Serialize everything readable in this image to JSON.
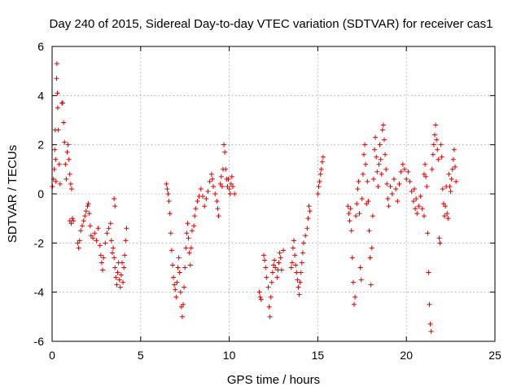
{
  "chart_data": {
    "type": "scatter",
    "title": "Day 240 of 2015, Sidereal Day-to-day VTEC variation (SDTVAR) for receiver cas1",
    "xlabel": "GPS time / hours",
    "ylabel": "SDTVAR / TECUs",
    "xlim": [
      0,
      25
    ],
    "ylim": [
      -6,
      6
    ],
    "xticks": [
      0,
      5,
      10,
      15,
      20,
      25
    ],
    "yticks": [
      -6,
      -4,
      -2,
      0,
      2,
      4,
      6
    ],
    "xtick_labels": [
      "0",
      "5",
      "10",
      "15",
      "20",
      "25"
    ],
    "ytick_labels": [
      "-6",
      "-4",
      "-2",
      "0",
      "2",
      "4",
      "6"
    ],
    "grid": true,
    "marker": "plus",
    "color": "#dd0000",
    "series": [
      {
        "name": "SDTVAR",
        "points": [
          [
            0.02,
            0.3
          ],
          [
            0.08,
            0.6
          ],
          [
            0.12,
            1.0
          ],
          [
            0.15,
            1.8
          ],
          [
            0.18,
            2.6
          ],
          [
            0.2,
            1.4
          ],
          [
            0.22,
            0.5
          ],
          [
            0.25,
            4.7
          ],
          [
            0.27,
            5.3
          ],
          [
            0.3,
            4.1
          ],
          [
            0.32,
            3.5
          ],
          [
            0.35,
            2.6
          ],
          [
            0.4,
            1.2
          ],
          [
            0.45,
            0.4
          ],
          [
            0.55,
            3.7
          ],
          [
            0.6,
            3.7
          ],
          [
            0.65,
            2.9
          ],
          [
            0.7,
            2.1
          ],
          [
            0.75,
            1.2
          ],
          [
            0.8,
            0.6
          ],
          [
            0.85,
            1.7
          ],
          [
            0.9,
            2.0
          ],
          [
            0.95,
            1.4
          ],
          [
            1.0,
            0.8
          ],
          [
            1.05,
            0.4
          ],
          [
            1.1,
            0.2
          ],
          [
            1.0,
            -1.1
          ],
          [
            1.08,
            -1.2
          ],
          [
            1.15,
            -1.0
          ],
          [
            1.2,
            -1.1
          ],
          [
            1.45,
            -2.0
          ],
          [
            1.5,
            -2.2
          ],
          [
            1.55,
            -1.9
          ],
          [
            1.62,
            -1.5
          ],
          [
            1.7,
            -1.3
          ],
          [
            1.78,
            -1.1
          ],
          [
            1.85,
            -0.9
          ],
          [
            1.92,
            -0.7
          ],
          [
            2.0,
            -0.5
          ],
          [
            2.05,
            -0.4
          ],
          [
            2.1,
            -0.8
          ],
          [
            2.15,
            -1.3
          ],
          [
            2.2,
            -1.7
          ],
          [
            2.3,
            -1.8
          ],
          [
            2.4,
            -1.6
          ],
          [
            2.5,
            -1.9
          ],
          [
            2.6,
            -1.4
          ],
          [
            2.7,
            -2.1
          ],
          [
            2.75,
            -2.5
          ],
          [
            2.8,
            -2.8
          ],
          [
            2.85,
            -3.1
          ],
          [
            2.9,
            -2.6
          ],
          [
            3.0,
            -2.0
          ],
          [
            3.1,
            -1.6
          ],
          [
            3.2,
            -1.4
          ],
          [
            3.3,
            -1.2
          ],
          [
            3.35,
            -1.9
          ],
          [
            3.4,
            -2.4
          ],
          [
            3.45,
            -2.2
          ],
          [
            3.5,
            -2.6
          ],
          [
            3.55,
            -3.0
          ],
          [
            3.6,
            -3.4
          ],
          [
            3.5,
            -0.2
          ],
          [
            3.55,
            -0.5
          ],
          [
            3.65,
            -3.7
          ],
          [
            3.7,
            -3.2
          ],
          [
            3.75,
            -2.8
          ],
          [
            3.8,
            -3.5
          ],
          [
            3.85,
            -3.8
          ],
          [
            3.9,
            -3.3
          ],
          [
            3.95,
            -2.8
          ],
          [
            4.0,
            -3.6
          ],
          [
            4.05,
            -3.0
          ],
          [
            4.1,
            -2.5
          ],
          [
            4.15,
            -1.9
          ],
          [
            4.2,
            -1.4
          ],
          [
            6.45,
            0.4
          ],
          [
            6.5,
            0.2
          ],
          [
            6.55,
            0.0
          ],
          [
            6.6,
            -0.3
          ],
          [
            6.65,
            -0.8
          ],
          [
            6.7,
            -1.6
          ],
          [
            6.75,
            -2.3
          ],
          [
            6.8,
            -2.9
          ],
          [
            6.85,
            -3.4
          ],
          [
            6.9,
            -3.7
          ],
          [
            6.95,
            -3.9
          ],
          [
            7.0,
            -4.2
          ],
          [
            7.05,
            -3.6
          ],
          [
            7.1,
            -3.0
          ],
          [
            7.15,
            -2.6
          ],
          [
            7.2,
            -3.2
          ],
          [
            7.25,
            -4.0
          ],
          [
            7.3,
            -4.6
          ],
          [
            7.35,
            -5.0
          ],
          [
            7.4,
            -4.5
          ],
          [
            7.45,
            -3.8
          ],
          [
            7.5,
            -3.0
          ],
          [
            7.55,
            -2.2
          ],
          [
            7.6,
            -1.6
          ],
          [
            7.65,
            -1.2
          ],
          [
            7.7,
            -1.8
          ],
          [
            7.75,
            -2.4
          ],
          [
            7.8,
            -2.9
          ],
          [
            7.85,
            -2.2
          ],
          [
            7.9,
            -1.5
          ],
          [
            8.0,
            -1.3
          ],
          [
            8.05,
            -0.9
          ],
          [
            8.1,
            -0.6
          ],
          [
            8.2,
            -0.3
          ],
          [
            8.3,
            -0.1
          ],
          [
            8.4,
            0.2
          ],
          [
            8.5,
            -0.1
          ],
          [
            8.6,
            -0.5
          ],
          [
            8.7,
            -0.2
          ],
          [
            8.8,
            0.1
          ],
          [
            8.9,
            0.5
          ],
          [
            9.0,
            0.8
          ],
          [
            9.05,
            0.6
          ],
          [
            9.1,
            0.3
          ],
          [
            9.2,
            0.0
          ],
          [
            9.3,
            -0.3
          ],
          [
            9.35,
            -0.6
          ],
          [
            9.4,
            -0.9
          ],
          [
            9.5,
            0.4
          ],
          [
            9.55,
            0.7
          ],
          [
            9.6,
            0.3
          ],
          [
            9.65,
            1.0
          ],
          [
            9.7,
            2.0
          ],
          [
            9.75,
            1.7
          ],
          [
            9.8,
            1.0
          ],
          [
            9.85,
            0.6
          ],
          [
            9.9,
            0.3
          ],
          [
            9.95,
            0.6
          ],
          [
            10.0,
            0.2
          ],
          [
            10.05,
            0.0
          ],
          [
            10.1,
            0.4
          ],
          [
            10.15,
            0.7
          ],
          [
            10.2,
            0.3
          ],
          [
            10.3,
            0.0
          ],
          [
            11.7,
            -4.0
          ],
          [
            11.75,
            -4.2
          ],
          [
            11.8,
            -4.3
          ],
          [
            11.95,
            -2.5
          ],
          [
            12.0,
            -2.7
          ],
          [
            12.05,
            -3.0
          ],
          [
            12.1,
            -3.4
          ],
          [
            12.2,
            -3.8
          ],
          [
            12.25,
            -4.6
          ],
          [
            12.3,
            -5.0
          ],
          [
            12.35,
            -4.2
          ],
          [
            12.4,
            -3.6
          ],
          [
            12.45,
            -3.2
          ],
          [
            12.5,
            -2.9
          ],
          [
            12.55,
            -2.7
          ],
          [
            12.6,
            -3.0
          ],
          [
            12.7,
            -3.4
          ],
          [
            12.75,
            -3.1
          ],
          [
            12.8,
            -2.8
          ],
          [
            12.85,
            -2.4
          ],
          [
            12.9,
            -2.6
          ],
          [
            12.95,
            -3.1
          ],
          [
            13.05,
            -2.3
          ],
          [
            13.5,
            -3.0
          ],
          [
            13.55,
            -2.8
          ],
          [
            13.6,
            -2.2
          ],
          [
            13.65,
            -1.9
          ],
          [
            13.7,
            -2.5
          ],
          [
            13.75,
            -2.9
          ],
          [
            13.8,
            -3.2
          ],
          [
            13.85,
            -3.5
          ],
          [
            13.9,
            -3.8
          ],
          [
            13.95,
            -4.1
          ],
          [
            14.0,
            -3.6
          ],
          [
            14.05,
            -3.2
          ],
          [
            14.1,
            -2.8
          ],
          [
            14.15,
            -2.4
          ],
          [
            14.2,
            -2.0
          ],
          [
            14.3,
            -1.7
          ],
          [
            14.4,
            -1.4
          ],
          [
            14.45,
            -1.0
          ],
          [
            14.5,
            -0.5
          ],
          [
            14.55,
            -0.7
          ],
          [
            15.0,
            0.0
          ],
          [
            15.05,
            0.3
          ],
          [
            15.1,
            0.5
          ],
          [
            15.15,
            0.8
          ],
          [
            15.2,
            1.0
          ],
          [
            15.25,
            1.3
          ],
          [
            15.3,
            1.5
          ],
          [
            16.7,
            -0.5
          ],
          [
            16.75,
            -0.8
          ],
          [
            16.8,
            -1.1
          ],
          [
            16.85,
            -0.6
          ],
          [
            16.9,
            -1.5
          ],
          [
            16.95,
            -2.6
          ],
          [
            17.0,
            -3.6
          ],
          [
            17.05,
            -4.5
          ],
          [
            17.1,
            -4.2
          ],
          [
            17.15,
            -0.9
          ],
          [
            17.2,
            -0.4
          ],
          [
            17.25,
            0.2
          ],
          [
            17.3,
            0.5
          ],
          [
            17.35,
            -0.8
          ],
          [
            17.4,
            -3.0
          ],
          [
            17.45,
            -3.5
          ],
          [
            17.5,
            -0.2
          ],
          [
            17.55,
            0.8
          ],
          [
            17.6,
            1.6
          ],
          [
            17.65,
            2.0
          ],
          [
            17.7,
            1.2
          ],
          [
            17.75,
            -0.4
          ],
          [
            17.8,
            0.5
          ],
          [
            17.85,
            -0.3
          ],
          [
            17.9,
            -1.5
          ],
          [
            17.95,
            -2.6
          ],
          [
            18.0,
            -3.7
          ],
          [
            18.05,
            -2.2
          ],
          [
            18.1,
            -0.9
          ],
          [
            18.15,
            0.6
          ],
          [
            18.2,
            1.8
          ],
          [
            18.25,
            2.3
          ],
          [
            18.3,
            1.5
          ],
          [
            18.35,
            0.9
          ],
          [
            18.4,
            0.3
          ],
          [
            18.45,
            1.2
          ],
          [
            18.5,
            2.0
          ],
          [
            18.55,
            1.4
          ],
          [
            18.6,
            0.8
          ],
          [
            18.65,
            2.6
          ],
          [
            18.7,
            2.8
          ],
          [
            18.75,
            2.2
          ],
          [
            18.8,
            1.6
          ],
          [
            18.85,
            1.0
          ],
          [
            18.9,
            0.4
          ],
          [
            18.95,
            -0.2
          ],
          [
            19.0,
            -0.5
          ],
          [
            19.1,
            0.3
          ],
          [
            19.2,
            0.0
          ],
          [
            19.3,
            0.6
          ],
          [
            19.4,
            0.2
          ],
          [
            19.5,
            -0.3
          ],
          [
            19.6,
            0.4
          ],
          [
            19.7,
            0.9
          ],
          [
            19.8,
            1.2
          ],
          [
            19.9,
            1.0
          ],
          [
            20.0,
            0.6
          ],
          [
            20.1,
            0.9
          ],
          [
            20.2,
            0.5
          ],
          [
            20.3,
            0.1
          ],
          [
            20.4,
            -0.3
          ],
          [
            20.45,
            0.2
          ],
          [
            20.5,
            -0.6
          ],
          [
            20.55,
            -0.2
          ],
          [
            20.6,
            -0.8
          ],
          [
            20.7,
            -0.5
          ],
          [
            20.8,
            -0.1
          ],
          [
            20.9,
            -0.6
          ],
          [
            21.0,
            -0.9
          ],
          [
            21.0,
            0.8
          ],
          [
            21.05,
            1.2
          ],
          [
            21.1,
            0.7
          ],
          [
            21.15,
            0.3
          ],
          [
            21.2,
            -1.6
          ],
          [
            21.25,
            -3.2
          ],
          [
            21.3,
            -4.5
          ],
          [
            21.35,
            -5.3
          ],
          [
            21.4,
            -5.6
          ],
          [
            21.45,
            1.0
          ],
          [
            21.5,
            1.6
          ],
          [
            21.55,
            2.0
          ],
          [
            21.6,
            2.4
          ],
          [
            21.65,
            2.8
          ],
          [
            21.7,
            2.2
          ],
          [
            21.75,
            1.8
          ],
          [
            21.8,
            1.4
          ],
          [
            21.85,
            -1.8
          ],
          [
            21.9,
            -2.0
          ],
          [
            21.95,
            2.0
          ],
          [
            22.0,
            1.5
          ],
          [
            22.05,
            0.2
          ],
          [
            22.1,
            -0.4
          ],
          [
            22.15,
            -0.9
          ],
          [
            22.2,
            -0.5
          ],
          [
            22.25,
            0.3
          ],
          [
            22.3,
            -0.8
          ],
          [
            22.35,
            -1.0
          ],
          [
            22.4,
            0.8
          ],
          [
            22.45,
            0.3
          ],
          [
            22.5,
            0.1
          ],
          [
            22.55,
            0.6
          ],
          [
            22.6,
            1.0
          ],
          [
            22.65,
            1.4
          ],
          [
            22.7,
            1.8
          ],
          [
            22.75,
            1.1
          ],
          [
            22.8,
            0.5
          ]
        ]
      }
    ]
  }
}
